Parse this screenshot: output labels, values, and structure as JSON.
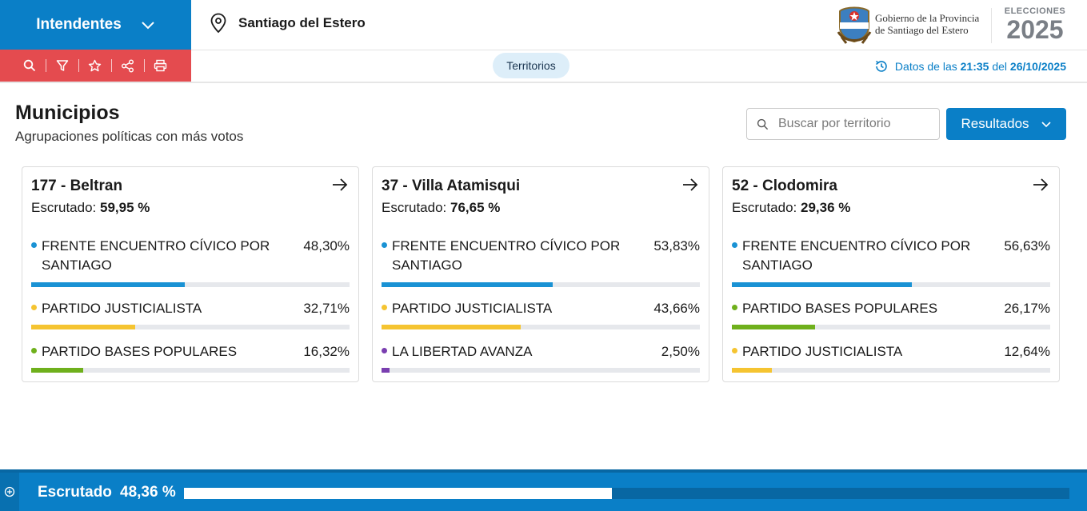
{
  "header": {
    "cargo": "Intendentes",
    "location": "Santiago del Estero",
    "tab": "Territorios",
    "gov_line1": "Gobierno de la Provincia",
    "gov_line2": "de Santiago del Estero",
    "elecciones": "ELECCIONES",
    "year": "2025",
    "datos_prefix": "Datos de las",
    "datos_time": "21:35",
    "datos_mid": "del",
    "datos_date": "26/10/2025",
    "toolbar_icons": [
      "search-icon",
      "filter-icon",
      "star-icon",
      "share-icon",
      "print-icon"
    ]
  },
  "section": {
    "title": "Municipios",
    "subtitle": "Agrupaciones políticas con más votos",
    "search_placeholder": "Buscar por territorio",
    "results_button": "Resultados"
  },
  "cards": [
    {
      "title": "177 - Beltran",
      "escrutado_label": "Escrutado:",
      "escrutado_value": "59,95 %",
      "parties": [
        {
          "name": "FRENTE ENCUENTRO CÍVICO POR SANTIAGO",
          "pct": "48,30%",
          "value": 48.3,
          "color": "#1a92d4"
        },
        {
          "name": "PARTIDO JUSTICIALISTA",
          "pct": "32,71%",
          "value": 32.71,
          "color": "#f5c431"
        },
        {
          "name": "PARTIDO BASES POPULARES",
          "pct": "16,32%",
          "value": 16.32,
          "color": "#6fb01c"
        }
      ]
    },
    {
      "title": "37 - Villa Atamisqui",
      "escrutado_label": "Escrutado:",
      "escrutado_value": "76,65 %",
      "parties": [
        {
          "name": "FRENTE ENCUENTRO CÍVICO POR SANTIAGO",
          "pct": "53,83%",
          "value": 53.83,
          "color": "#1a92d4"
        },
        {
          "name": "PARTIDO JUSTICIALISTA",
          "pct": "43,66%",
          "value": 43.66,
          "color": "#f5c431"
        },
        {
          "name": "LA LIBERTAD AVANZA",
          "pct": "2,50%",
          "value": 2.5,
          "color": "#7a3fb0"
        }
      ]
    },
    {
      "title": "52 - Clodomira",
      "escrutado_label": "Escrutado:",
      "escrutado_value": "29,36 %",
      "parties": [
        {
          "name": "FRENTE ENCUENTRO CÍVICO POR SANTIAGO",
          "pct": "56,63%",
          "value": 56.63,
          "color": "#1a92d4"
        },
        {
          "name": "PARTIDO BASES POPULARES",
          "pct": "26,17%",
          "value": 26.17,
          "color": "#6fb01c"
        },
        {
          "name": "PARTIDO JUSTICIALISTA",
          "pct": "12,64%",
          "value": 12.64,
          "color": "#f5c431"
        }
      ]
    }
  ],
  "footer": {
    "label": "Escrutado",
    "value": "48,36 %",
    "progress": 48.36
  }
}
